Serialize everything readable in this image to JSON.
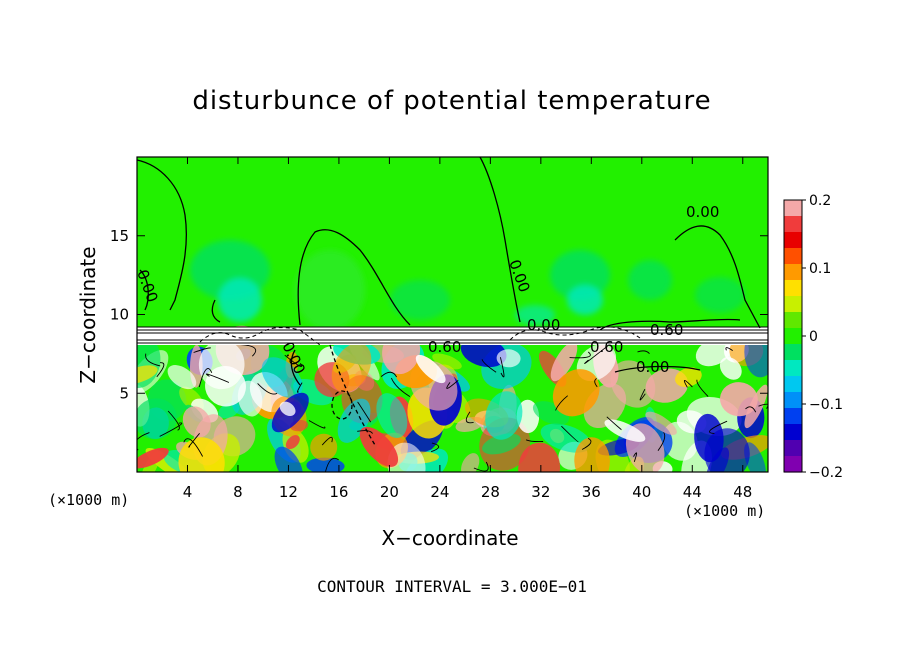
{
  "chart_data": {
    "type": "heatmap",
    "title": "disturbunce of potential temperature",
    "xlabel": "X−coordinate",
    "ylabel": "Z−coordinate",
    "x_unit": "(×1000 m)",
    "y_unit": "(×1000 m)",
    "xlim": [
      0,
      50
    ],
    "ylim": [
      0,
      20
    ],
    "x_ticks": [
      4,
      8,
      12,
      16,
      20,
      24,
      28,
      32,
      36,
      40,
      44,
      48
    ],
    "y_ticks": [
      5,
      10,
      15
    ],
    "colorbar": {
      "range": [
        -0.2,
        0.2
      ],
      "tick_values": [
        0.2,
        0.1,
        0,
        -0.1,
        -0.2
      ],
      "tick_labels": [
        "0.2",
        "0.1",
        "0",
        "−0.1",
        "−0.2"
      ],
      "colors": [
        "#f4a8a8",
        "#f03c3c",
        "#e80000",
        "#ff5000",
        "#ff9a00",
        "#ffe000",
        "#c8f000",
        "#60e800",
        "#22f000",
        "#00e060",
        "#00e8c0",
        "#00c8f0",
        "#0090f8",
        "#0040f0",
        "#0000d0",
        "#5000b0",
        "#8000b0"
      ]
    },
    "contour_labels": [
      "0.00",
      "0.00",
      "0.00",
      "0.00",
      "0.00",
      "0.60",
      "0.60",
      "0.60",
      "0.00"
    ],
    "contour_interval_text": "CONTOUR INTERVAL = 3.000E−01",
    "regions": {
      "upper_background": "near 0 (green)",
      "tropopause_band_z": [
        8.2,
        9.2
      ],
      "lower_layer": "turbulent mix of positive and negative disturbances below z≈8"
    }
  }
}
